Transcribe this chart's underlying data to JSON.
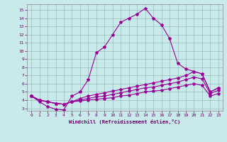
{
  "xlabel": "Windchill (Refroidissement éolien,°C)",
  "background_color": "#c8eaea",
  "grid_color": "#aaccaa",
  "line_color": "#990099",
  "xlim": [
    -0.5,
    23.5
  ],
  "ylim": [
    2.7,
    15.7
  ],
  "xticks": [
    0,
    1,
    2,
    3,
    4,
    5,
    6,
    7,
    8,
    9,
    10,
    11,
    12,
    13,
    14,
    15,
    16,
    17,
    18,
    19,
    20,
    21,
    22,
    23
  ],
  "yticks": [
    3,
    4,
    5,
    6,
    7,
    8,
    9,
    10,
    11,
    12,
    13,
    14,
    15
  ],
  "series": [
    [
      4.5,
      3.8,
      3.2,
      2.9,
      2.8,
      4.5,
      5.0,
      6.5,
      9.8,
      10.5,
      12.0,
      13.5,
      14.0,
      14.5,
      15.2,
      14.0,
      13.2,
      11.5,
      8.5,
      7.8,
      7.5,
      7.2,
      5.0,
      5.5
    ],
    [
      4.5,
      4.0,
      3.8,
      3.6,
      3.5,
      3.8,
      4.2,
      4.5,
      4.7,
      4.9,
      5.1,
      5.3,
      5.5,
      5.7,
      5.9,
      6.1,
      6.3,
      6.5,
      6.7,
      7.0,
      7.5,
      7.2,
      5.0,
      5.5
    ],
    [
      4.5,
      4.0,
      3.8,
      3.6,
      3.5,
      3.8,
      4.0,
      4.2,
      4.4,
      4.5,
      4.7,
      4.9,
      5.1,
      5.3,
      5.5,
      5.6,
      5.8,
      6.0,
      6.2,
      6.5,
      6.8,
      6.6,
      4.8,
      5.2
    ],
    [
      4.5,
      4.0,
      3.8,
      3.6,
      3.5,
      3.8,
      3.9,
      4.0,
      4.1,
      4.2,
      4.3,
      4.5,
      4.6,
      4.8,
      5.0,
      5.1,
      5.2,
      5.4,
      5.6,
      5.8,
      6.0,
      5.8,
      4.5,
      4.8
    ]
  ]
}
